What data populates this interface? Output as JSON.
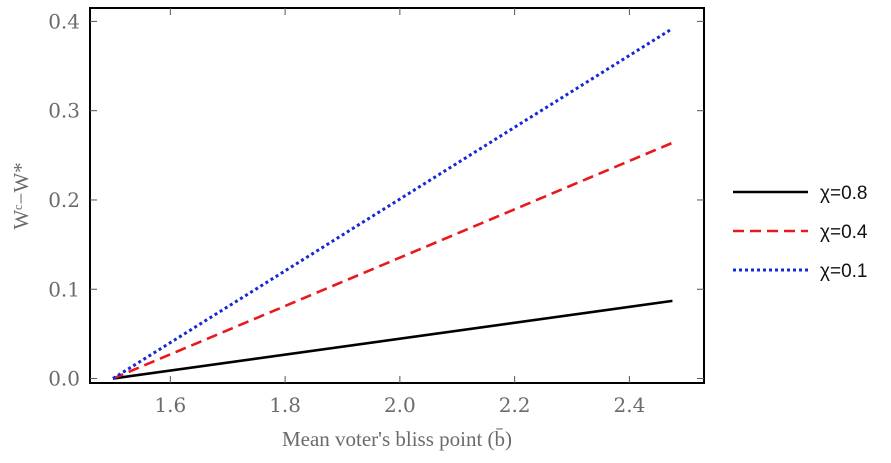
{
  "chart_data": {
    "type": "line",
    "xlabel": "Mean voter's bliss point (b̄)",
    "ylabel": "Wᶜ−W*",
    "xlim": [
      1.46,
      2.53
    ],
    "ylim": [
      -0.005,
      0.415
    ],
    "x_ticks": [
      "1.6",
      "1.8",
      "2.0",
      "2.2",
      "2.4"
    ],
    "y_ticks": [
      "0.0",
      "0.1",
      "0.2",
      "0.3",
      "0.4"
    ],
    "grid": false,
    "legend_position": "right",
    "series": [
      {
        "name": "χ=0.8",
        "color": "#000000",
        "style": "solid",
        "x": [
          1.5,
          2.475
        ],
        "y": [
          0.0,
          0.087
        ]
      },
      {
        "name": "χ=0.4",
        "color": "#e8191c",
        "style": "dashed",
        "x": [
          1.5,
          2.475
        ],
        "y": [
          0.0,
          0.264
        ]
      },
      {
        "name": "χ=0.1",
        "color": "#1428d8",
        "style": "dotted",
        "x": [
          1.5,
          2.475
        ],
        "y": [
          0.0,
          0.392
        ]
      }
    ]
  }
}
